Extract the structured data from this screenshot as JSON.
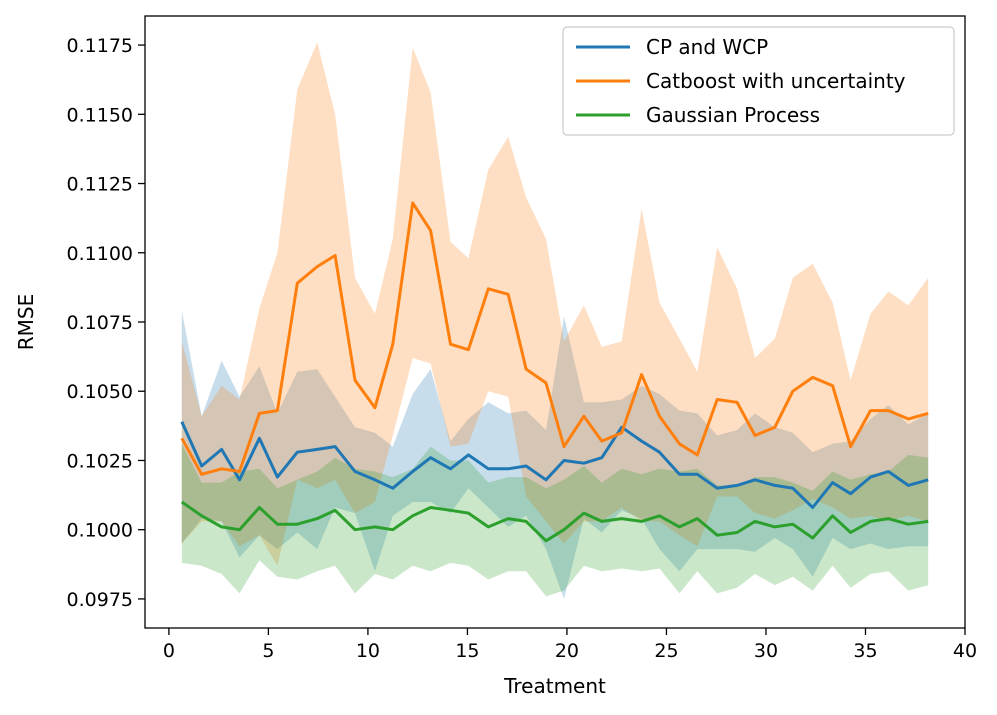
{
  "chart_data": {
    "type": "line",
    "title": "",
    "xlabel": "Treatment",
    "ylabel": "RMSE",
    "xlim": [
      -1.2,
      40
    ],
    "ylim": [
      0.09645,
      0.11855
    ],
    "xticks": [
      0,
      5,
      10,
      15,
      20,
      25,
      30,
      35,
      40
    ],
    "yticks": [
      0.0975,
      0.1,
      0.1025,
      0.105,
      0.1075,
      0.11,
      0.1125,
      0.115,
      0.1175
    ],
    "xtick_labels": [
      "0",
      "5",
      "10",
      "15",
      "20",
      "25",
      "30",
      "35",
      "40"
    ],
    "ytick_labels": [
      "0.0975",
      "0.1000",
      "0.1025",
      "0.1050",
      "0.1075",
      "0.1100",
      "0.1125",
      "0.1150",
      "0.1175"
    ],
    "grid": false,
    "legend_position": "top-right",
    "x": [
      0.65,
      1.65,
      2.65,
      3.55,
      4.55,
      5.45,
      6.45,
      7.45,
      8.35,
      9.35,
      10.35,
      11.25,
      12.25,
      13.15,
      14.15,
      15.05,
      16.05,
      17.05,
      17.95,
      18.95,
      19.85,
      20.85,
      21.75,
      22.75,
      23.75,
      24.65,
      25.65,
      26.55,
      27.55,
      28.55,
      29.45,
      30.45,
      31.35,
      32.35,
      33.35,
      34.25,
      35.25,
      36.15,
      37.15,
      38.15
    ],
    "series": [
      {
        "name": "CP and WCP",
        "color": "#1f77b4",
        "values": [
          0.1039,
          0.1023,
          0.1029,
          0.1018,
          0.1033,
          0.1019,
          0.1028,
          0.1029,
          0.103,
          0.1021,
          0.1018,
          0.1015,
          0.1021,
          0.1026,
          0.1022,
          0.1027,
          0.1022,
          0.1022,
          0.1023,
          0.1018,
          0.1025,
          0.1024,
          0.1026,
          0.1037,
          0.1032,
          0.1028,
          0.102,
          0.102,
          0.1015,
          0.1016,
          0.1018,
          0.1016,
          0.1015,
          0.1008,
          0.1017,
          0.1013,
          0.1019,
          0.1021,
          0.1016,
          0.1018
        ],
        "lower": [
          0.0995,
          0.1004,
          0.1003,
          0.099,
          0.0998,
          0.0993,
          0.0999,
          0.0993,
          0.1008,
          0.1006,
          0.0985,
          0.1005,
          0.101,
          0.101,
          0.1006,
          0.1015,
          0.1008,
          0.1001,
          0.1005,
          0.0993,
          0.0975,
          0.1004,
          0.0999,
          0.1007,
          0.1004,
          0.0993,
          0.0985,
          0.0993,
          0.0993,
          0.0993,
          0.0992,
          0.0997,
          0.0993,
          0.0983,
          0.0997,
          0.0993,
          0.0995,
          0.0993,
          0.0994,
          0.0994
        ],
        "upper": [
          0.1079,
          0.1041,
          0.1061,
          0.1048,
          0.1059,
          0.1042,
          0.1057,
          0.1058,
          0.1048,
          0.1037,
          0.1035,
          0.103,
          0.1049,
          0.1058,
          0.1032,
          0.104,
          0.1046,
          0.1042,
          0.1043,
          0.1036,
          0.1077,
          0.1046,
          0.1046,
          0.1047,
          0.1052,
          0.1049,
          0.1043,
          0.1042,
          0.1034,
          0.1036,
          0.1042,
          0.1037,
          0.1035,
          0.1028,
          0.1031,
          0.1032,
          0.104,
          0.1045,
          0.1038,
          0.1042
        ]
      },
      {
        "name": "Catboost with uncertainty",
        "color": "#ff7f0e",
        "values": [
          0.1033,
          0.102,
          0.1022,
          0.1021,
          0.1042,
          0.1043,
          0.1089,
          0.1095,
          0.1099,
          0.1054,
          0.1044,
          0.1067,
          0.1118,
          0.1108,
          0.1067,
          0.1065,
          0.1087,
          0.1085,
          0.1058,
          0.1053,
          0.103,
          0.1041,
          0.1032,
          0.1035,
          0.1056,
          0.1041,
          0.1031,
          0.1027,
          0.1047,
          0.1046,
          0.1034,
          0.1037,
          0.105,
          0.1055,
          0.1052,
          0.103,
          0.1043,
          0.1043,
          0.104,
          0.1042
        ],
        "lower": [
          0.0995,
          0.1003,
          0.1003,
          0.0994,
          0.0998,
          0.0987,
          0.1018,
          0.1015,
          0.1018,
          0.1006,
          0.101,
          0.1034,
          0.1062,
          0.106,
          0.103,
          0.1031,
          0.105,
          0.1048,
          0.1012,
          0.1003,
          0.0995,
          0.1003,
          0.1003,
          0.1008,
          0.1003,
          0.1003,
          0.0998,
          0.0994,
          0.1012,
          0.1012,
          0.1006,
          0.1004,
          0.1007,
          0.1011,
          0.1008,
          0.1004,
          0.1005,
          0.1003,
          0.1005,
          0.1003
        ],
        "upper": [
          0.1068,
          0.1041,
          0.1052,
          0.1047,
          0.108,
          0.11,
          0.1159,
          0.1176,
          0.115,
          0.1091,
          0.1078,
          0.1105,
          0.1174,
          0.1158,
          0.1104,
          0.1098,
          0.113,
          0.1142,
          0.112,
          0.1105,
          0.1068,
          0.1081,
          0.1066,
          0.1068,
          0.1116,
          0.1082,
          0.1069,
          0.1057,
          0.1102,
          0.1087,
          0.1062,
          0.1069,
          0.1091,
          0.1096,
          0.1082,
          0.1054,
          0.1078,
          0.1086,
          0.1081,
          0.1091
        ]
      },
      {
        "name": "Gaussian Process",
        "color": "#2ca02c",
        "values": [
          0.101,
          0.1005,
          0.1001,
          0.1,
          0.1008,
          0.1002,
          0.1002,
          0.1004,
          0.1007,
          0.1,
          0.1001,
          0.1,
          0.1005,
          0.1008,
          0.1007,
          0.1006,
          0.1001,
          0.1004,
          0.1003,
          0.0996,
          0.1,
          0.1006,
          0.1003,
          0.1004,
          0.1003,
          0.1005,
          0.1001,
          0.1004,
          0.0998,
          0.0999,
          0.1003,
          0.1001,
          0.1002,
          0.0997,
          0.1005,
          0.0999,
          0.1003,
          0.1004,
          0.1002,
          0.1003
        ],
        "lower": [
          0.0988,
          0.0987,
          0.0984,
          0.0977,
          0.0989,
          0.0983,
          0.0982,
          0.0985,
          0.0987,
          0.0977,
          0.0984,
          0.0982,
          0.0987,
          0.0985,
          0.0988,
          0.0987,
          0.0982,
          0.0985,
          0.0985,
          0.0976,
          0.0978,
          0.0987,
          0.0985,
          0.0986,
          0.0985,
          0.0986,
          0.0977,
          0.0985,
          0.0977,
          0.0979,
          0.0984,
          0.098,
          0.0983,
          0.0978,
          0.0987,
          0.0979,
          0.0984,
          0.0985,
          0.0978,
          0.098
        ],
        "upper": [
          0.1031,
          0.1017,
          0.1017,
          0.1021,
          0.1022,
          0.1015,
          0.1018,
          0.1021,
          0.1026,
          0.1022,
          0.1021,
          0.1019,
          0.1022,
          0.103,
          0.1025,
          0.1025,
          0.1017,
          0.1019,
          0.1019,
          0.1015,
          0.1018,
          0.1023,
          0.1017,
          0.1022,
          0.102,
          0.1022,
          0.1021,
          0.1022,
          0.1016,
          0.1016,
          0.1019,
          0.1019,
          0.1017,
          0.1014,
          0.1021,
          0.1018,
          0.102,
          0.1021,
          0.1027,
          0.1026
        ]
      }
    ]
  }
}
